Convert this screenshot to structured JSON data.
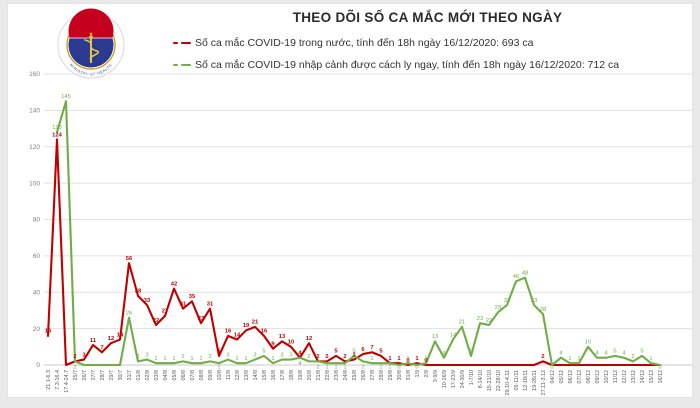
{
  "title": "THEO DÕI SỐ CA MẮC MỚI THEO NGÀY",
  "logo": {
    "top_text": "BỘ Y TẾ",
    "bottom_text": "MINISTRY OF HEALTH"
  },
  "legend": [
    {
      "label": "Số ca mắc COVID-19 trong nước, tính đến 18h ngày 16/12/2020: 693 ca",
      "color": "#c00000"
    },
    {
      "label": "Số ca mắc COVID-19 nhập cảnh được cách ly ngay, tính đến 18h ngày 16/12/2020: 712 ca",
      "color": "#70ad47"
    }
  ],
  "chart_data": {
    "type": "line",
    "title": "THEO DÕI SỐ CA MẮC MỚI THEO NGÀY",
    "ylim": [
      0,
      160
    ],
    "yticks": [
      0,
      20,
      40,
      60,
      80,
      100,
      120,
      140,
      160
    ],
    "grid": true,
    "legend_position": "top",
    "categories": [
      "21.1-6.3",
      "7.3-16.4",
      "17.4-24.7",
      "25/7",
      "26/7",
      "27/7",
      "28/7",
      "29/7",
      "30/7",
      "31/7",
      "01/8",
      "02/8",
      "03/8",
      "04/8",
      "05/8",
      "06/8",
      "07/8",
      "08/8",
      "09/8",
      "10/8",
      "11/8",
      "12/8",
      "13/8",
      "14/8",
      "15/8",
      "16/8",
      "17/8",
      "18/8",
      "19/8",
      "20/8",
      "21/8",
      "22/8",
      "23/8",
      "24/8",
      "25/8",
      "26/8",
      "27/8",
      "28/8",
      "29/8",
      "30/8",
      "31/8",
      "1/9",
      "2/9",
      "3-9/9",
      "10-16/9",
      "17-23/9",
      "24-30/9",
      "1-7/10",
      "8-14/10",
      "15-21/10",
      "22-28/10",
      "29.10-4.11",
      "05-11/11",
      "12-18/11",
      "19-26/11",
      "27.11-3.12",
      "04/12",
      "05/12",
      "06/12",
      "07/12",
      "08/12",
      "09/12",
      "10/12",
      "11/12",
      "12/12",
      "13/12",
      "14/12",
      "15/12",
      "16/12"
    ],
    "series": [
      {
        "name": "Số ca mắc COVID-19 trong nước",
        "color": "#c00000",
        "bold_labels": true,
        "label_zero_indexes": [
          40,
          42
        ],
        "values": [
          16,
          124,
          0,
          2,
          3,
          11,
          7,
          12,
          14,
          56,
          38,
          33,
          22,
          27,
          42,
          31,
          35,
          23,
          31,
          5,
          16,
          14,
          19,
          21,
          16,
          9,
          13,
          10,
          4,
          12,
          2,
          2,
          5,
          2,
          3,
          6,
          7,
          5,
          1,
          1,
          0,
          1,
          0,
          0,
          0,
          0,
          0,
          0,
          0,
          0,
          0,
          0,
          0,
          0,
          0,
          2,
          0,
          0,
          0,
          0,
          0,
          0,
          0,
          0,
          0,
          0,
          0,
          0,
          0
        ]
      },
      {
        "name": "Số ca mắc COVID-19 nhập cảnh được cách ly ngay",
        "color": "#70ad47",
        "bold_labels": false,
        "label_zero_indexes": [
          39,
          41,
          56,
          68
        ],
        "values": [
          null,
          128,
          145,
          2,
          0,
          0,
          0,
          0,
          0,
          26,
          2,
          3,
          1,
          1,
          1,
          2,
          1,
          1,
          2,
          1,
          3,
          1,
          1,
          3,
          5,
          1,
          3,
          3,
          4,
          2,
          2,
          1,
          1,
          1,
          5,
          2,
          1,
          1,
          1,
          0,
          1,
          0,
          1,
          13,
          4,
          14,
          21,
          5,
          23,
          22,
          29,
          33,
          46,
          48,
          33,
          28,
          0,
          4,
          1,
          1,
          10,
          4,
          4,
          5,
          4,
          2,
          5,
          1,
          0
        ]
      }
    ]
  }
}
